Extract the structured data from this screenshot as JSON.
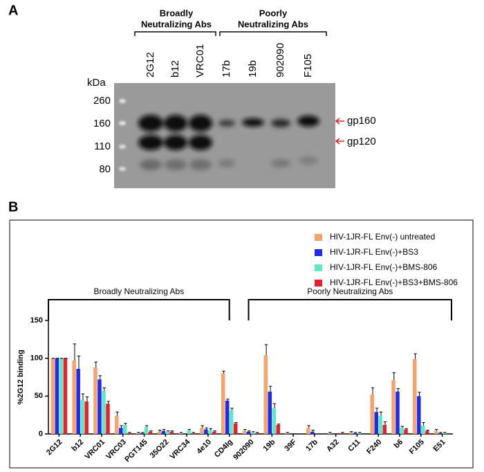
{
  "panel_a": {
    "label": "A",
    "group_labels": [
      [
        "Broadly",
        "Neutralizing Abs"
      ],
      [
        "Poorly",
        "Neutralizing Abs"
      ]
    ],
    "lanes": [
      "2G12",
      "b12",
      "VRC01",
      "17b",
      "19b",
      "902090",
      "F105"
    ],
    "marker_unit": "kDa",
    "markers": [
      "260",
      "160",
      "110",
      "80"
    ],
    "bands": [
      "gp160",
      "gp120"
    ]
  },
  "chart_data": {
    "type": "bar",
    "label": "B",
    "ylabel": "%2G12 binding",
    "categories": [
      "2G12",
      "b12",
      "VRC01",
      "VRC03",
      "PGT145",
      "35O22",
      "VRC34",
      "4e10",
      "CD4Ig",
      "902090",
      "19b",
      "39F",
      "17b",
      "A32",
      "C11",
      "F240",
      "b6",
      "F105",
      "E51"
    ],
    "series": [
      {
        "name": "HIV-1JR-FL Env(-) untreated",
        "color": "#f5a46e",
        "values": [
          100,
          97,
          88,
          24,
          1,
          3,
          1,
          8,
          80,
          4,
          104,
          1,
          8,
          1,
          2,
          52,
          71,
          99,
          4
        ],
        "errors": [
          0,
          22,
          7,
          5,
          1,
          2,
          1,
          3,
          3,
          2,
          14,
          1,
          3,
          1,
          1,
          9,
          10,
          7,
          2
        ]
      },
      {
        "name": "HIV-1JR-FL Env(-)+BS3",
        "color": "#1f2be8",
        "values": [
          100,
          86,
          72,
          8,
          1,
          4,
          0,
          6,
          44,
          3,
          56,
          0,
          3,
          0,
          1,
          29,
          56,
          50,
          1
        ],
        "errors": [
          0,
          17,
          5,
          3,
          1,
          2,
          0,
          2,
          2,
          1,
          7,
          0,
          2,
          0,
          1,
          5,
          4,
          5,
          1
        ]
      },
      {
        "name": "HIV-1JR-FL Env(-)+BMS-806",
        "color": "#5ee8c8",
        "values": [
          100,
          45,
          57,
          12,
          9,
          3,
          5,
          5,
          31,
          2,
          34,
          0,
          0,
          0,
          1,
          24,
          8,
          11,
          1
        ],
        "errors": [
          0,
          8,
          4,
          2,
          2,
          1,
          1,
          2,
          3,
          1,
          6,
          0,
          0,
          0,
          1,
          5,
          2,
          4,
          1
        ]
      },
      {
        "name": "HIV-1JR-FL Env(-)+BS3+BMS-806",
        "color": "#e8202a",
        "values": [
          100,
          43,
          40,
          1,
          3,
          3,
          1,
          3,
          14,
          1,
          12,
          0,
          0,
          1,
          0,
          12,
          6,
          4,
          0
        ],
        "errors": [
          0,
          6,
          3,
          1,
          1,
          1,
          1,
          1,
          1,
          1,
          1,
          0,
          0,
          1,
          0,
          4,
          1,
          1,
          0
        ]
      }
    ],
    "annotations": [
      "Broadly Neutralizing Abs",
      "Poorly Neutralizing Abs"
    ],
    "ylim": [
      0,
      150
    ],
    "yticks": [
      0,
      50,
      100,
      150
    ],
    "legend": "top-right"
  }
}
